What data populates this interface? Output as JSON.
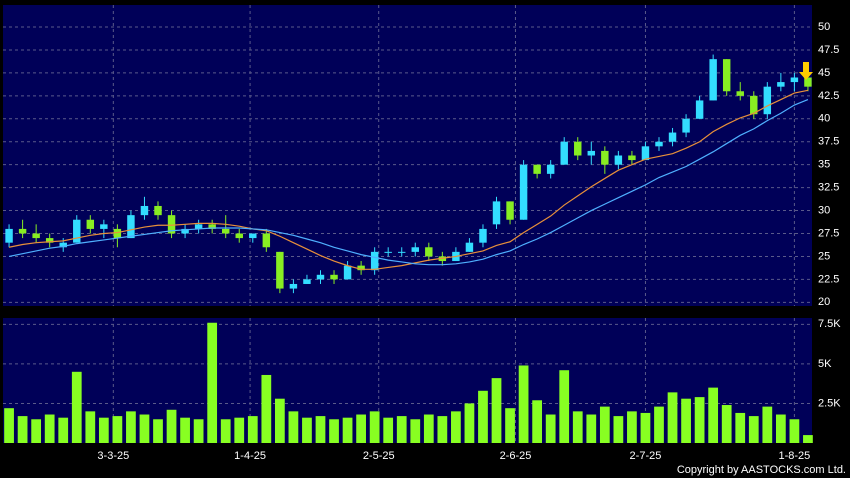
{
  "chart_data": [
    {
      "type": "candlestick",
      "xlim": [
        -0.3,
        59.3
      ],
      "ylim": [
        19.6,
        52.4
      ],
      "yticks": [
        20,
        22.5,
        25,
        27.5,
        30,
        32.5,
        35,
        37.5,
        40,
        42.5,
        45,
        47.5,
        50
      ],
      "grid": true,
      "up_color": "#33ddff",
      "down_color": "#88ee22",
      "open": [
        26.5,
        28,
        27.5,
        27,
        26,
        26.5,
        29,
        28,
        28,
        27,
        29.5,
        30.5,
        29.5,
        27.5,
        28,
        28.5,
        28,
        27.5,
        27,
        27.5,
        25.5,
        21.5,
        22,
        22.5,
        23,
        22.5,
        24,
        23.5,
        25.5,
        25.5,
        25.5,
        26,
        25,
        24.5,
        25.5,
        26.5,
        28.5,
        31,
        29,
        35,
        34,
        35,
        37.5,
        36,
        36.5,
        35,
        36,
        35.5,
        37,
        37.5,
        38.5,
        40,
        42,
        46.5,
        43,
        42.5,
        40.5,
        43.5,
        44,
        44.5
      ],
      "high": [
        28.5,
        29,
        28.5,
        27.5,
        27,
        29.5,
        29.5,
        29,
        28.5,
        30,
        31.5,
        31,
        30,
        28.5,
        29,
        29,
        29.5,
        28,
        27.5,
        28,
        25.5,
        22.5,
        23,
        23.5,
        23.5,
        24.5,
        24.5,
        26,
        26,
        26,
        26.5,
        26.5,
        25.5,
        26,
        27,
        28.5,
        31.5,
        31,
        35.5,
        35,
        35.5,
        38,
        38,
        37.5,
        37,
        36.5,
        36.5,
        37.5,
        38,
        39,
        40.5,
        42.5,
        47,
        46.5,
        44,
        43,
        44,
        45,
        45,
        44.5
      ],
      "low": [
        26,
        27,
        26.5,
        26,
        25.5,
        26.5,
        27.5,
        27,
        26,
        27,
        29,
        29,
        27,
        27,
        27.5,
        27.5,
        27,
        26.5,
        26.5,
        25.5,
        21,
        21,
        22,
        22,
        22,
        22.5,
        23,
        23,
        25,
        25,
        25,
        24.5,
        24,
        24.5,
        25.5,
        26,
        28,
        28.5,
        29,
        33.5,
        33.5,
        35,
        35.5,
        35,
        34,
        34.5,
        35,
        35.5,
        36.5,
        37,
        38,
        40,
        42,
        42.5,
        42,
        40,
        40,
        43,
        43,
        43
      ],
      "close": [
        28,
        27.5,
        27,
        26.5,
        26.5,
        29,
        28,
        28.5,
        27,
        29.5,
        30.5,
        29.5,
        27.5,
        28,
        28.5,
        28,
        27.5,
        27,
        27.5,
        26,
        21.5,
        22,
        22.5,
        23,
        22.5,
        24,
        23.5,
        25.5,
        25.5,
        25.5,
        26,
        25,
        24.5,
        25.5,
        26.5,
        28,
        31,
        29,
        35,
        34,
        35,
        37.5,
        36,
        36.5,
        35,
        36,
        35.5,
        37,
        37.5,
        38.5,
        40,
        42,
        46.5,
        43,
        42.5,
        40.5,
        43.5,
        44,
        44.5,
        43.5
      ],
      "series": [
        {
          "color": "#e8903a",
          "values": [
            26,
            26.3,
            26.5,
            26.6,
            26.7,
            27,
            27.3,
            27.5,
            27.6,
            27.9,
            28.2,
            28.4,
            28.4,
            28.5,
            28.6,
            28.6,
            28.5,
            28.3,
            28.0,
            27.8,
            27.2,
            26.5,
            25.8,
            25.1,
            24.5,
            24.0,
            23.6,
            23.6,
            23.8,
            24.0,
            24.3,
            24.6,
            24.8,
            25.0,
            25.3,
            25.6,
            26.2,
            26.6,
            27.6,
            28.5,
            29.4,
            30.6,
            31.6,
            32.6,
            33.5,
            34.4,
            35.0,
            35.6,
            35.9,
            36.2,
            36.8,
            37.5,
            38.6,
            39.4,
            40.1,
            40.6,
            41.4,
            42.1,
            42.8,
            43.1
          ]
        },
        {
          "color": "#4fb0ff",
          "values": [
            25,
            25.3,
            25.6,
            25.9,
            26.1,
            26.4,
            26.6,
            26.8,
            27.0,
            27.2,
            27.4,
            27.6,
            27.8,
            27.9,
            28.0,
            28.1,
            28.1,
            28.1,
            28.0,
            27.9,
            27.6,
            27.3,
            26.9,
            26.5,
            26.0,
            25.6,
            25.2,
            24.9,
            24.6,
            24.4,
            24.2,
            24.1,
            24.1,
            24.2,
            24.4,
            24.7,
            25.2,
            25.6,
            26.3,
            26.9,
            27.6,
            28.4,
            29.2,
            30.0,
            30.7,
            31.4,
            32.1,
            32.8,
            33.6,
            34.2,
            34.8,
            35.6,
            36.4,
            37.3,
            38.2,
            38.9,
            39.8,
            40.6,
            41.5,
            42.1
          ]
        }
      ]
    },
    {
      "type": "bar",
      "xlim": [
        -0.3,
        59.3
      ],
      "ylim": [
        0,
        7900
      ],
      "yticks": [
        {
          "value": 2500,
          "label": "2.5K"
        },
        {
          "value": 5000,
          "label": "5K"
        },
        {
          "value": 7500,
          "label": "7.5K"
        }
      ],
      "xticks": [
        {
          "value": 7.7,
          "label": "3-3-25"
        },
        {
          "value": 17.8,
          "label": "1-4-25"
        },
        {
          "value": 27.3,
          "label": "2-5-25"
        },
        {
          "value": 37.4,
          "label": "2-6-25"
        },
        {
          "value": 47,
          "label": "2-7-25"
        },
        {
          "value": 58,
          "label": "1-8-25"
        }
      ],
      "grid": true,
      "color": "#88ff22",
      "values": [
        2200,
        1700,
        1500,
        1800,
        1600,
        4500,
        2000,
        1600,
        1700,
        2000,
        1800,
        1500,
        2100,
        1600,
        1500,
        7600,
        1500,
        1600,
        1700,
        4300,
        2800,
        2000,
        1600,
        1700,
        1500,
        1600,
        1800,
        2000,
        1600,
        1700,
        1500,
        1800,
        1700,
        2000,
        2500,
        3300,
        4100,
        2200,
        4900,
        2700,
        1800,
        4600,
        2000,
        1800,
        2300,
        1700,
        2000,
        1900,
        2300,
        3200,
        2800,
        2900,
        3500,
        2400,
        1900,
        1700,
        2300,
        1800,
        1500,
        500
      ]
    },
    {
      "type": "note",
      "text": "Copyright by AASTOCKS.com Ltd."
    }
  ]
}
